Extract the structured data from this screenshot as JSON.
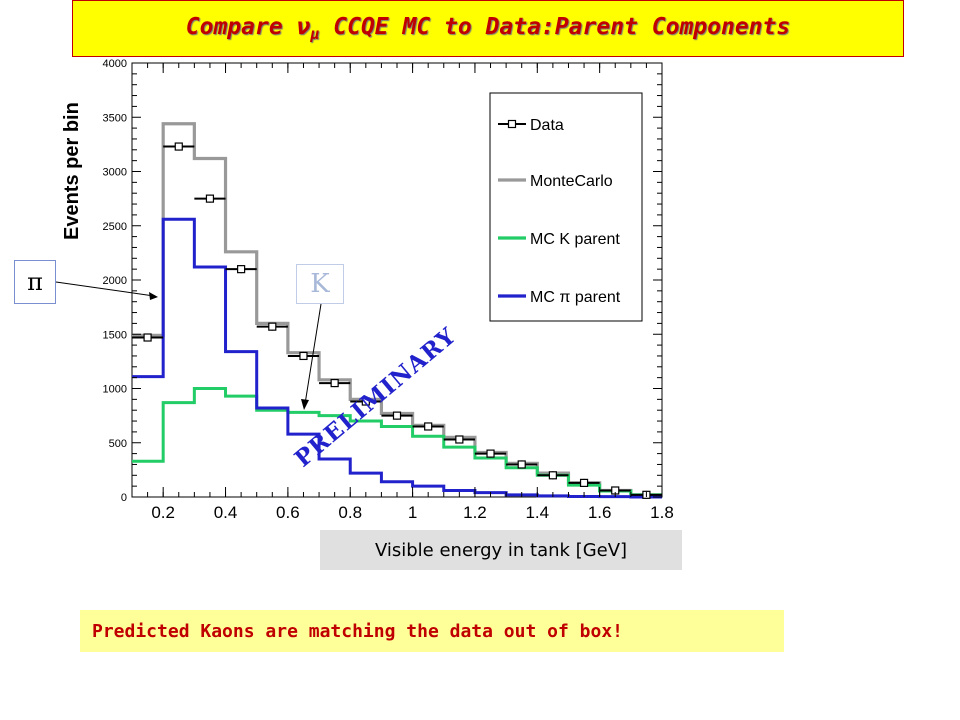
{
  "title": {
    "prefix": "Compare ",
    "nu": "ν",
    "mu": "μ",
    "suffix": " CCQE MC to Data:Parent Components"
  },
  "callouts": {
    "pi": "π",
    "k": "K"
  },
  "watermark": "PRELIMINARY",
  "xlabel_box": "Visible energy in tank [GeV]",
  "note": "Predicted Kaons are matching the data out of box!",
  "colors": {
    "title_bg": "#ffff00",
    "title_text": "#c00000",
    "data": "#000000",
    "montecarlo": "#999999",
    "k_parent": "#22cc66",
    "pi_parent": "#2222cc",
    "watermark": "#2222cc",
    "note_bg": "#ffff99"
  },
  "chart_data": {
    "type": "line",
    "ylabel": "Events per bin",
    "xlabel": "Visible energy in tank [GeV]",
    "xlim": [
      0.1,
      1.8
    ],
    "ylim": [
      0,
      4000
    ],
    "xticks": [
      "0.2",
      "0.4",
      "0.6",
      "0.8",
      "1",
      "1.2",
      "1.4",
      "1.6",
      "1.8"
    ],
    "yticks": [
      "0",
      "500",
      "1000",
      "1500",
      "2000",
      "2500",
      "3000",
      "3500",
      "4000"
    ],
    "bin_edges": [
      0.1,
      0.2,
      0.3,
      0.4,
      0.5,
      0.6,
      0.7,
      0.8,
      0.9,
      1.0,
      1.1,
      1.2,
      1.3,
      1.4,
      1.5,
      1.6,
      1.7,
      1.8
    ],
    "legend_position": "top-right",
    "series": [
      {
        "name": "Data",
        "style": "markers",
        "values": [
          1470,
          3230,
          2750,
          2100,
          1570,
          1300,
          1050,
          880,
          750,
          650,
          530,
          400,
          300,
          200,
          130,
          60,
          20
        ]
      },
      {
        "name": "MonteCarlo",
        "style": "step",
        "values": [
          1490,
          3440,
          3120,
          2260,
          1600,
          1330,
          1080,
          900,
          770,
          660,
          550,
          410,
          310,
          220,
          130,
          60,
          20
        ]
      },
      {
        "name": "MC K parent",
        "style": "step",
        "values": [
          330,
          870,
          1000,
          930,
          800,
          780,
          750,
          700,
          650,
          560,
          460,
          360,
          270,
          200,
          110,
          55,
          20
        ]
      },
      {
        "name": "MC π parent",
        "style": "step",
        "values": [
          1110,
          2560,
          2120,
          1340,
          820,
          580,
          350,
          220,
          140,
          100,
          60,
          40,
          20,
          10,
          5,
          3,
          0
        ]
      }
    ]
  }
}
